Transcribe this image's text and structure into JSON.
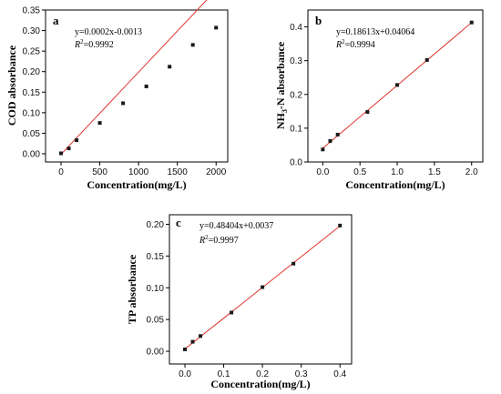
{
  "chart_data": [
    {
      "type": "scatter",
      "panel_label": "a",
      "equation": "y=0.0002x-0.0013",
      "r2_prefix": "R",
      "r2_sup": "2",
      "r2_value": "=0.9992",
      "xlabel": "Concentration(mg/L)",
      "ylabel": "COD absorbance",
      "xlim": [
        -200,
        2150
      ],
      "ylim": [
        -0.02,
        0.35
      ],
      "xticks": [
        "0",
        "500",
        "1000",
        "1500",
        "2000"
      ],
      "xtick_values": [
        0,
        500,
        1000,
        1500,
        2000
      ],
      "yticks": [
        "0.00",
        "0.05",
        "0.10",
        "0.15",
        "0.20",
        "0.25",
        "0.30",
        "0.35"
      ],
      "ytick_values": [
        0.0,
        0.05,
        0.1,
        0.15,
        0.2,
        0.25,
        0.3,
        0.35
      ],
      "x": [
        0,
        100,
        200,
        500,
        800,
        1100,
        1400,
        1700,
        2000
      ],
      "y": [
        0.001,
        0.013,
        0.033,
        0.075,
        0.123,
        0.164,
        0.212,
        0.265,
        0.307
      ],
      "fit": {
        "slope": 0.0002,
        "intercept": -0.0013,
        "x_from": 0,
        "x_to": 2000
      },
      "colors": {
        "points": "#1a1a1a",
        "fit_line": "#e0342b",
        "axes": "#000000"
      }
    },
    {
      "type": "scatter",
      "panel_label": "b",
      "equation": "y=0.18613x+0.04064",
      "r2_prefix": "R",
      "r2_sup": "2",
      "r2_value": "=0.9994",
      "xlabel": "Concentration(mg/L)",
      "ylabel_main": "NH",
      "ylabel_sub": "3",
      "ylabel_rest": "-N absorbance",
      "xlim": [
        -0.2,
        2.15
      ],
      "ylim": [
        0,
        0.45
      ],
      "xticks": [
        "0.0",
        "0.5",
        "1.0",
        "1.5",
        "2.0"
      ],
      "xtick_values": [
        0.0,
        0.5,
        1.0,
        1.5,
        2.0
      ],
      "yticks": [
        "0.0",
        "0.1",
        "0.2",
        "0.3",
        "0.4"
      ],
      "ytick_values": [
        0.0,
        0.1,
        0.2,
        0.3,
        0.4
      ],
      "x": [
        0,
        0.1,
        0.2,
        0.6,
        1.0,
        1.4,
        2.0
      ],
      "y": [
        0.037,
        0.062,
        0.081,
        0.148,
        0.228,
        0.302,
        0.413
      ],
      "fit": {
        "slope": 0.18613,
        "intercept": 0.04064,
        "x_from": 0,
        "x_to": 2.0
      },
      "colors": {
        "points": "#1a1a1a",
        "fit_line": "#e0342b",
        "axes": "#000000"
      }
    },
    {
      "type": "scatter",
      "panel_label": "c",
      "equation": "y=0.48404x+0.0037",
      "r2_prefix": "R",
      "r2_sup": "2",
      "r2_value": "=0.9997",
      "xlabel": "Concentration(mg/L)",
      "ylabel": "TP absorbance",
      "xlim": [
        -0.04,
        0.43
      ],
      "ylim": [
        -0.02,
        0.215
      ],
      "xticks": [
        "0.0",
        "0.1",
        "0.2",
        "0.3",
        "0.4"
      ],
      "xtick_values": [
        0.0,
        0.1,
        0.2,
        0.3,
        0.4
      ],
      "yticks": [
        "0.00",
        "0.05",
        "0.10",
        "0.15",
        "0.20"
      ],
      "ytick_values": [
        0.0,
        0.05,
        0.1,
        0.15,
        0.2
      ],
      "x": [
        0,
        0.02,
        0.04,
        0.12,
        0.2,
        0.28,
        0.4
      ],
      "y": [
        0.003,
        0.015,
        0.024,
        0.061,
        0.101,
        0.138,
        0.198
      ],
      "fit": {
        "slope": 0.48404,
        "intercept": 0.0037,
        "x_from": 0,
        "x_to": 0.4
      },
      "colors": {
        "points": "#1a1a1a",
        "fit_line": "#e0342b",
        "axes": "#000000"
      }
    }
  ]
}
